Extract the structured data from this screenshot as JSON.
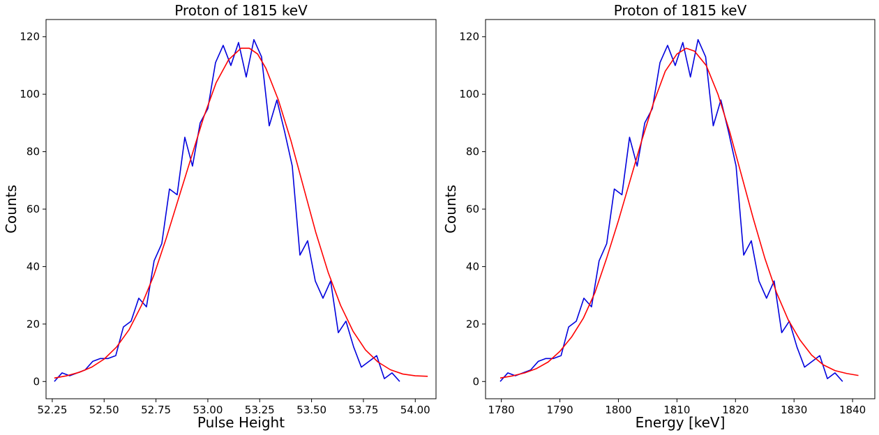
{
  "chart_data": [
    {
      "type": "line",
      "title": "Proton of 1815 keV",
      "xlabel": "Pulse Height",
      "ylabel": "Counts",
      "xlim": [
        52.22,
        54.1
      ],
      "ylim": [
        -6,
        126
      ],
      "xticks": [
        52.25,
        52.5,
        52.75,
        53.0,
        53.25,
        53.5,
        53.75,
        54.0
      ],
      "xtick_labels": [
        "52.25",
        "52.50",
        "52.75",
        "53.00",
        "53.25",
        "53.50",
        "53.75",
        "54.00"
      ],
      "yticks": [
        0,
        20,
        40,
        60,
        80,
        100,
        120
      ],
      "ytick_labels": [
        "0",
        "20",
        "40",
        "60",
        "80",
        "100",
        "120"
      ],
      "grid": false,
      "series": [
        {
          "color": "#0000dd",
          "x": [
            52.26,
            52.297,
            52.334,
            52.371,
            52.408,
            52.445,
            52.482,
            52.519,
            52.556,
            52.593,
            52.63,
            52.667,
            52.704,
            52.741,
            52.778,
            52.815,
            52.852,
            52.889,
            52.926,
            52.963,
            53.0,
            53.037,
            53.074,
            53.111,
            53.148,
            53.185,
            53.222,
            53.259,
            53.296,
            53.333,
            53.37,
            53.407,
            53.444,
            53.481,
            53.518,
            53.555,
            53.592,
            53.629,
            53.666,
            53.703,
            53.74,
            53.777,
            53.814,
            53.851,
            53.888,
            53.925,
            53.962,
            53.999,
            54.036
          ],
          "y": [
            0,
            3,
            2,
            3,
            4,
            7,
            8,
            8,
            9,
            19,
            21,
            29,
            26,
            42,
            48,
            67,
            65,
            85,
            75,
            90,
            95,
            111,
            117,
            110,
            118,
            106,
            119,
            113,
            89,
            98,
            87,
            75,
            44,
            49,
            35,
            29,
            35,
            17,
            21,
            12,
            5,
            7,
            9,
            1,
            3,
            0,
            null,
            null,
            null
          ]
        },
        {
          "color": "#ff0000",
          "x": [
            52.26,
            52.32,
            52.38,
            52.44,
            52.5,
            52.56,
            52.62,
            52.68,
            52.74,
            52.8,
            52.86,
            52.92,
            52.98,
            53.04,
            53.1,
            53.16,
            53.2,
            53.24,
            53.28,
            53.34,
            53.4,
            53.46,
            53.52,
            53.58,
            53.64,
            53.7,
            53.76,
            53.82,
            53.88,
            53.94,
            54.0,
            54.06
          ],
          "y": [
            1.2,
            2,
            3.2,
            5,
            7.8,
            12,
            18,
            26.5,
            37,
            50,
            64,
            78,
            92,
            104,
            112,
            116,
            116,
            114,
            109,
            98,
            84,
            68,
            52,
            38,
            26.5,
            17.5,
            11,
            6.8,
            4.1,
            2.6,
            2,
            1.8
          ]
        }
      ]
    },
    {
      "type": "line",
      "title": "Proton of 1815 keV",
      "xlabel": "Energy [keV]",
      "ylabel": "Counts",
      "xlim": [
        1777.3,
        1843.8
      ],
      "ylim": [
        -6,
        126
      ],
      "xticks": [
        1780,
        1790,
        1800,
        1810,
        1820,
        1830,
        1840
      ],
      "xtick_labels": [
        "1780",
        "1790",
        "1800",
        "1810",
        "1820",
        "1830",
        "1840"
      ],
      "yticks": [
        0,
        20,
        40,
        60,
        80,
        100,
        120
      ],
      "ytick_labels": [
        "0",
        "20",
        "40",
        "60",
        "80",
        "100",
        "120"
      ],
      "grid": false,
      "series": [
        {
          "color": "#0000dd",
          "x": [
            1779.8,
            1781.1,
            1782.4,
            1783.7,
            1785.0,
            1786.3,
            1787.6,
            1788.9,
            1790.2,
            1791.5,
            1792.8,
            1794.1,
            1795.4,
            1796.7,
            1798.0,
            1799.3,
            1800.6,
            1801.9,
            1803.2,
            1804.5,
            1805.8,
            1807.1,
            1808.4,
            1809.7,
            1811.0,
            1812.3,
            1813.6,
            1814.9,
            1816.2,
            1817.5,
            1818.8,
            1820.1,
            1821.4,
            1822.7,
            1824.0,
            1825.3,
            1826.6,
            1827.9,
            1829.2,
            1830.5,
            1831.8,
            1833.1,
            1834.4,
            1835.7,
            1837.0,
            1838.3,
            1839.6,
            1840.9
          ],
          "y": [
            0,
            3,
            2,
            3,
            4,
            7,
            8,
            8,
            9,
            19,
            21,
            29,
            26,
            42,
            48,
            67,
            65,
            85,
            75,
            90,
            95,
            111,
            117,
            110,
            118,
            106,
            119,
            113,
            89,
            98,
            87,
            75,
            44,
            49,
            35,
            29,
            35,
            17,
            21,
            12,
            5,
            7,
            9,
            1,
            3,
            0,
            null,
            null
          ]
        },
        {
          "color": "#ff0000",
          "x": [
            1779.8,
            1782,
            1784,
            1786,
            1788,
            1790,
            1792,
            1794,
            1796,
            1798,
            1800,
            1802,
            1804,
            1806,
            1808,
            1810,
            1811.6,
            1813,
            1815,
            1817,
            1819,
            1821,
            1823,
            1825,
            1827,
            1829,
            1831,
            1833,
            1835,
            1837,
            1839,
            1841
          ],
          "y": [
            1.2,
            2,
            3,
            4.5,
            6.8,
            10.5,
            15.5,
            22,
            31,
            43,
            56,
            70,
            84,
            97,
            108,
            114,
            116,
            115,
            110,
            100,
            87,
            72,
            57,
            43,
            31,
            21.5,
            14.5,
            9.2,
            5.8,
            3.8,
            2.8,
            2.1
          ]
        }
      ]
    }
  ]
}
